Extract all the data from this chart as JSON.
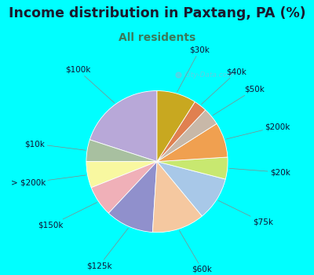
{
  "title": "Income distribution in Paxtang, PA (%)",
  "subtitle": "All residents",
  "title_color": "#1a1a2e",
  "subtitle_color": "#3a7a5a",
  "bg_color": "#00FFFF",
  "chart_bg": "#d8f0e8",
  "watermark": "City-Data.com",
  "labels": [
    "$100k",
    "$10k",
    "> $200k",
    "$150k",
    "$125k",
    "$60k",
    "$75k",
    "$20k",
    "$200k",
    "$50k",
    "$40k",
    "$30k"
  ],
  "values": [
    20,
    5,
    6,
    7,
    11,
    12,
    10,
    5,
    8,
    4,
    3,
    9
  ],
  "colors": [
    "#b8a8d8",
    "#a8c0a0",
    "#f8f8a0",
    "#f0b0b8",
    "#9090cc",
    "#f5c8a0",
    "#a8c8e8",
    "#c8e870",
    "#f0a050",
    "#c8b8a8",
    "#e08050",
    "#c8a820"
  ],
  "startangle": 90,
  "label_fontsize": 7.5,
  "title_fontsize": 12.5,
  "subtitle_fontsize": 10
}
